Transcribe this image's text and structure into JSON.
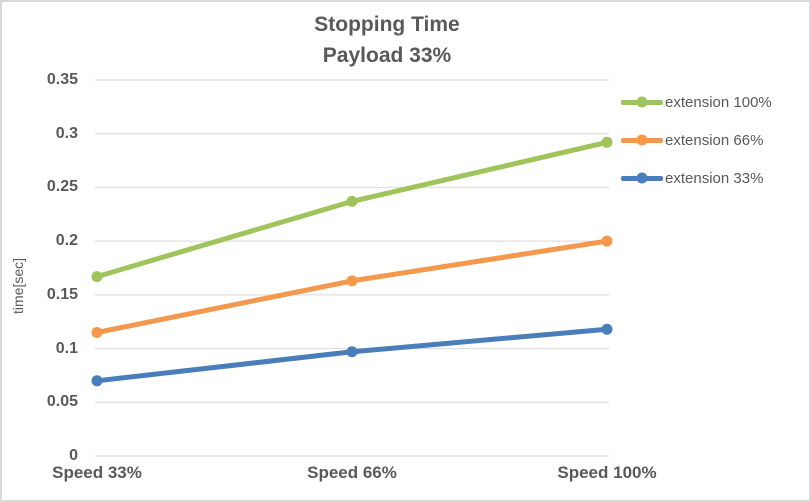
{
  "chart": {
    "title_line1": "Stopping Time",
    "title_line2": "Payload 33%",
    "ylabel": "time[sec]"
  },
  "chart_data": {
    "type": "line",
    "title": "Stopping Time Payload 33%",
    "categories": [
      "Speed 33%",
      "Speed 66%",
      "Speed 100%"
    ],
    "series": [
      {
        "name": "extension 100%",
        "color": "#A0C45C",
        "values": [
          0.167,
          0.237,
          0.292
        ]
      },
      {
        "name": "extension 66%",
        "color": "#F3984C",
        "values": [
          0.115,
          0.163,
          0.2
        ]
      },
      {
        "name": "extension 33%",
        "color": "#4A7EBB",
        "values": [
          0.07,
          0.097,
          0.118
        ]
      }
    ],
    "xlabel": "",
    "ylabel": "time[sec]",
    "ylim": [
      0,
      0.35
    ],
    "ytick_step": 0.05,
    "ytick_labels": [
      "0",
      "0.05",
      "0.1",
      "0.15",
      "0.2",
      "0.25",
      "0.3",
      "0.35"
    ],
    "grid": true,
    "legend_position": "right",
    "marker": "circle",
    "colors": {
      "grid": "#D9D9D9",
      "text": "#595959",
      "background": "#FFFFFF",
      "border": "#D9D9D9"
    }
  }
}
